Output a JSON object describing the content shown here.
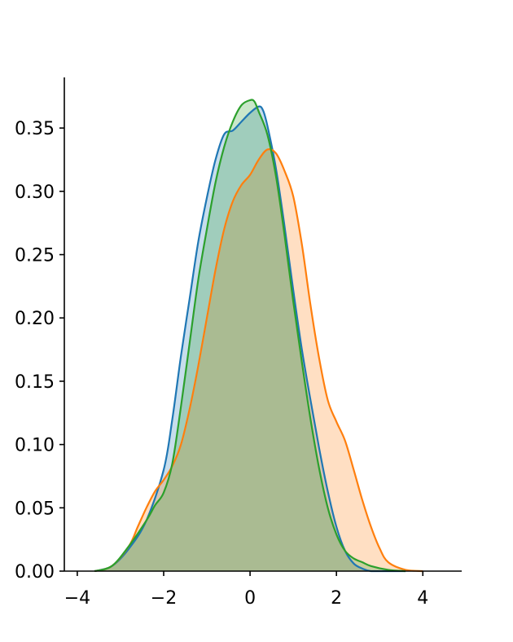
{
  "chart_data": {
    "type": "area",
    "title": "",
    "xlabel": "",
    "ylabel": "",
    "xlim": [
      -4.3,
      4.9
    ],
    "ylim": [
      0,
      0.39
    ],
    "xticks": [
      -4,
      -2,
      0,
      2,
      4
    ],
    "xtick_labels": [
      "−4",
      "−2",
      "0",
      "2",
      "4"
    ],
    "yticks": [
      0.0,
      0.05,
      0.1,
      0.15,
      0.2,
      0.25,
      0.3,
      0.35
    ],
    "ytick_labels": [
      "0.00",
      "0.05",
      "0.10",
      "0.15",
      "0.20",
      "0.25",
      "0.30",
      "0.35"
    ],
    "grid": false,
    "legend": "none",
    "series": [
      {
        "color": "#1f77b4",
        "fill_opacity": 0.25,
        "x": [
          -3.6,
          -3.2,
          -2.8,
          -2.4,
          -2.0,
          -1.8,
          -1.6,
          -1.4,
          -1.2,
          -1.0,
          -0.8,
          -0.6,
          -0.4,
          -0.2,
          0.0,
          0.2,
          0.3,
          0.4,
          0.6,
          0.8,
          1.0,
          1.2,
          1.4,
          1.6,
          1.8,
          2.0,
          2.2,
          2.4,
          2.6,
          2.8,
          3.2,
          3.6
        ],
        "y": [
          0.0,
          0.004,
          0.018,
          0.04,
          0.08,
          0.12,
          0.17,
          0.215,
          0.26,
          0.295,
          0.325,
          0.345,
          0.348,
          0.355,
          0.362,
          0.367,
          0.364,
          0.352,
          0.318,
          0.272,
          0.222,
          0.175,
          0.135,
          0.097,
          0.063,
          0.035,
          0.016,
          0.006,
          0.002,
          0.0,
          0.0,
          0.0
        ]
      },
      {
        "color": "#ff7f0e",
        "fill_opacity": 0.25,
        "x": [
          -3.6,
          -3.2,
          -2.8,
          -2.6,
          -2.4,
          -2.2,
          -2.0,
          -1.8,
          -1.6,
          -1.4,
          -1.2,
          -1.0,
          -0.8,
          -0.6,
          -0.4,
          -0.2,
          0.0,
          0.2,
          0.4,
          0.6,
          0.8,
          1.0,
          1.2,
          1.4,
          1.6,
          1.8,
          2.0,
          2.2,
          2.4,
          2.6,
          2.8,
          3.0,
          3.2,
          3.6,
          4.0
        ],
        "y": [
          0.0,
          0.004,
          0.02,
          0.035,
          0.05,
          0.063,
          0.072,
          0.083,
          0.1,
          0.128,
          0.162,
          0.2,
          0.238,
          0.27,
          0.292,
          0.305,
          0.313,
          0.325,
          0.333,
          0.33,
          0.316,
          0.296,
          0.258,
          0.21,
          0.168,
          0.135,
          0.118,
          0.103,
          0.08,
          0.056,
          0.035,
          0.018,
          0.007,
          0.001,
          0.0
        ]
      },
      {
        "color": "#2ca02c",
        "fill_opacity": 0.25,
        "x": [
          -3.6,
          -3.2,
          -2.8,
          -2.4,
          -2.2,
          -2.0,
          -1.8,
          -1.6,
          -1.4,
          -1.2,
          -1.0,
          -0.8,
          -0.6,
          -0.4,
          -0.2,
          0.0,
          0.1,
          0.2,
          0.4,
          0.6,
          0.8,
          1.0,
          1.2,
          1.4,
          1.6,
          1.8,
          2.0,
          2.2,
          2.4,
          2.6,
          2.8,
          3.2,
          3.6
        ],
        "y": [
          0.0,
          0.004,
          0.02,
          0.04,
          0.052,
          0.062,
          0.085,
          0.13,
          0.18,
          0.23,
          0.27,
          0.307,
          0.335,
          0.355,
          0.368,
          0.372,
          0.371,
          0.363,
          0.345,
          0.312,
          0.265,
          0.213,
          0.165,
          0.12,
          0.081,
          0.05,
          0.029,
          0.016,
          0.01,
          0.007,
          0.004,
          0.001,
          0.0
        ]
      }
    ]
  }
}
